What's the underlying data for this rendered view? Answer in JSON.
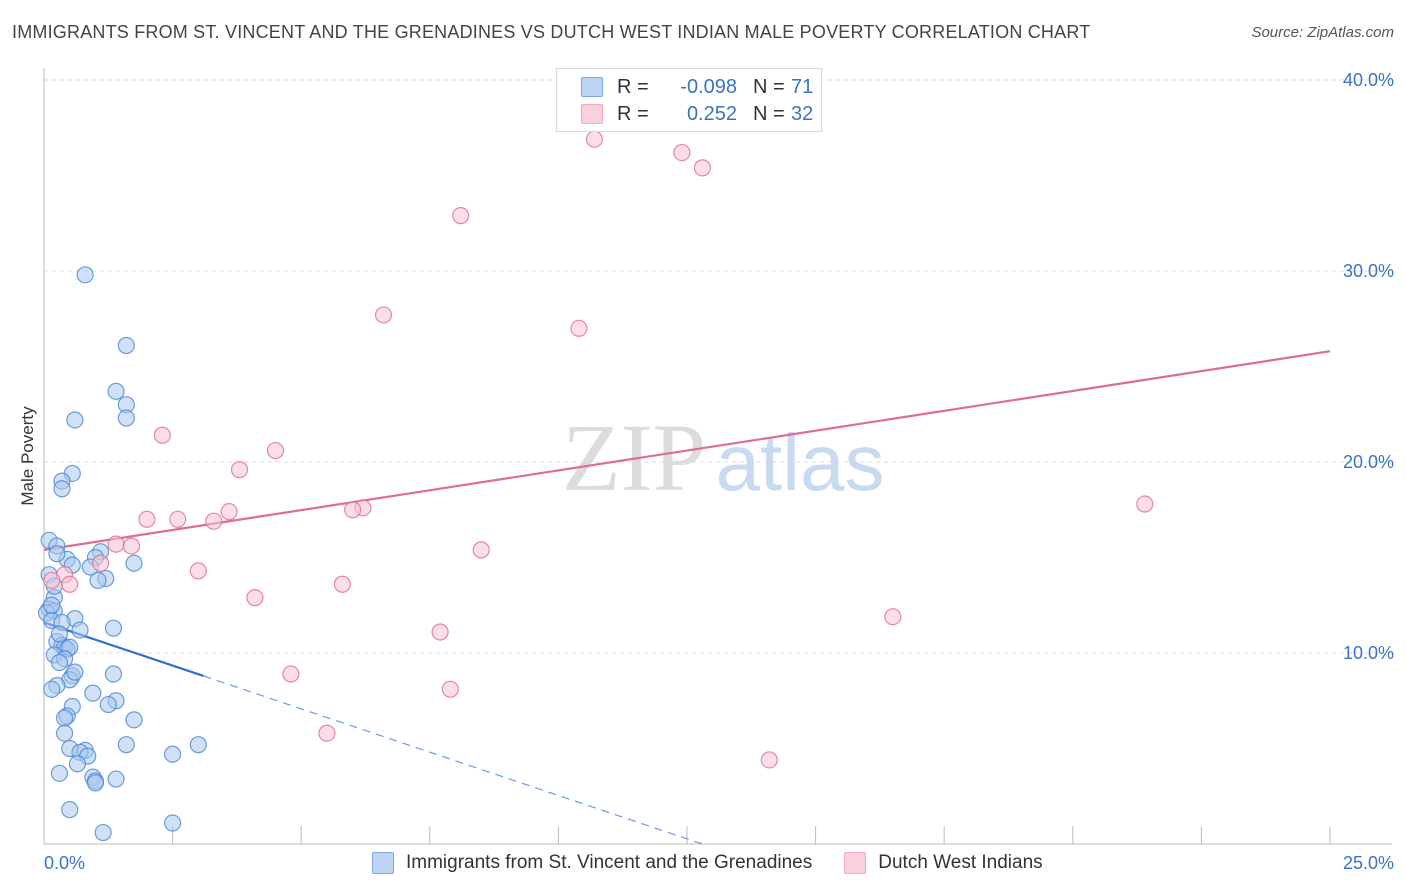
{
  "header": {
    "title": "IMMIGRANTS FROM ST. VINCENT AND THE GRENADINES VS DUTCH WEST INDIAN MALE POVERTY CORRELATION CHART",
    "source": "Source: ZipAtlas.com"
  },
  "watermark": {
    "zip": "ZIP",
    "atlas": "atlas"
  },
  "legend": {
    "r_label": "R =",
    "n_label": "N =",
    "rows": [
      {
        "r": "-0.098",
        "n": "71",
        "color": "#7aaae6"
      },
      {
        "r": "0.252",
        "n": "32",
        "color": "#f4a7bf"
      }
    ]
  },
  "chart_data": {
    "type": "scatter",
    "title": "IMMIGRANTS FROM ST. VINCENT AND THE GRENADINES VS DUTCH WEST INDIAN MALE POVERTY CORRELATION CHART",
    "xlabel": "",
    "ylabel": "Male Poverty",
    "xlim": [
      0,
      25
    ],
    "ylim": [
      0,
      40
    ],
    "x_tick_labels": [
      "0.0%",
      "25.0%"
    ],
    "y_tick_values": [
      10,
      20,
      30,
      40
    ],
    "y_tick_labels": [
      "10.0%",
      "20.0%",
      "30.0%",
      "40.0%"
    ],
    "grid": true,
    "legend_position": "top-center",
    "series": [
      {
        "name": "Immigrants from St. Vincent and the Grenadines",
        "color": "#4a86d6",
        "fill": "#a9c8ef",
        "trend": {
          "x": [
            0,
            3.1
          ],
          "y": [
            11.6,
            8.8
          ],
          "dashed_to": [
            12.8,
            0
          ]
        },
        "points": [
          [
            0.8,
            29.8
          ],
          [
            1.6,
            26.1
          ],
          [
            1.4,
            23.7
          ],
          [
            1.6,
            23.0
          ],
          [
            1.6,
            22.3
          ],
          [
            0.6,
            22.2
          ],
          [
            0.55,
            19.4
          ],
          [
            0.35,
            19.0
          ],
          [
            0.35,
            18.6
          ],
          [
            0.1,
            15.9
          ],
          [
            0.25,
            15.6
          ],
          [
            1.1,
            15.3
          ],
          [
            1.0,
            15.0
          ],
          [
            0.45,
            14.9
          ],
          [
            1.75,
            14.7
          ],
          [
            0.55,
            14.6
          ],
          [
            0.1,
            14.1
          ],
          [
            1.2,
            13.9
          ],
          [
            1.05,
            13.8
          ],
          [
            0.2,
            12.9
          ],
          [
            0.1,
            12.3
          ],
          [
            0.2,
            12.2
          ],
          [
            0.05,
            12.1
          ],
          [
            0.15,
            11.7
          ],
          [
            0.6,
            11.8
          ],
          [
            0.35,
            11.6
          ],
          [
            0.7,
            11.2
          ],
          [
            1.35,
            11.3
          ],
          [
            0.25,
            10.6
          ],
          [
            0.35,
            10.4
          ],
          [
            0.4,
            10.3
          ],
          [
            0.45,
            10.2
          ],
          [
            0.5,
            10.3
          ],
          [
            0.2,
            9.9
          ],
          [
            0.4,
            9.7
          ],
          [
            0.3,
            9.5
          ],
          [
            1.35,
            8.9
          ],
          [
            0.55,
            8.8
          ],
          [
            0.5,
            8.6
          ],
          [
            0.25,
            8.3
          ],
          [
            0.15,
            8.1
          ],
          [
            0.95,
            7.9
          ],
          [
            1.4,
            7.5
          ],
          [
            1.25,
            7.3
          ],
          [
            0.55,
            7.2
          ],
          [
            0.45,
            6.7
          ],
          [
            0.4,
            6.6
          ],
          [
            1.75,
            6.5
          ],
          [
            0.4,
            5.8
          ],
          [
            1.6,
            5.2
          ],
          [
            3.0,
            5.2
          ],
          [
            0.5,
            5.0
          ],
          [
            0.8,
            4.9
          ],
          [
            0.7,
            4.8
          ],
          [
            0.85,
            4.6
          ],
          [
            2.5,
            4.7
          ],
          [
            0.65,
            4.2
          ],
          [
            0.3,
            3.7
          ],
          [
            0.95,
            3.5
          ],
          [
            1.0,
            3.3
          ],
          [
            1.4,
            3.4
          ],
          [
            1.0,
            3.2
          ],
          [
            0.5,
            1.8
          ],
          [
            2.5,
            1.1
          ],
          [
            1.15,
            0.6
          ],
          [
            0.2,
            13.5
          ],
          [
            0.15,
            12.5
          ],
          [
            0.3,
            11.0
          ],
          [
            0.6,
            9.0
          ],
          [
            0.9,
            14.5
          ],
          [
            0.25,
            15.2
          ]
        ]
      },
      {
        "name": "Dutch West Indians",
        "color": "#e06b96",
        "fill": "#f7c2d3",
        "trend": {
          "x": [
            0,
            25
          ],
          "y": [
            15.4,
            25.8
          ]
        },
        "points": [
          [
            10.7,
            36.9
          ],
          [
            12.4,
            36.2
          ],
          [
            12.8,
            35.4
          ],
          [
            8.1,
            32.9
          ],
          [
            6.6,
            27.7
          ],
          [
            10.4,
            27.0
          ],
          [
            2.3,
            21.4
          ],
          [
            4.5,
            20.6
          ],
          [
            3.8,
            19.6
          ],
          [
            21.4,
            17.8
          ],
          [
            6.2,
            17.6
          ],
          [
            6.0,
            17.5
          ],
          [
            3.6,
            17.4
          ],
          [
            2.0,
            17.0
          ],
          [
            2.6,
            17.0
          ],
          [
            3.3,
            16.9
          ],
          [
            1.4,
            15.7
          ],
          [
            1.7,
            15.6
          ],
          [
            8.5,
            15.4
          ],
          [
            1.1,
            14.7
          ],
          [
            3.0,
            14.3
          ],
          [
            0.4,
            14.1
          ],
          [
            5.8,
            13.6
          ],
          [
            0.5,
            13.6
          ],
          [
            4.1,
            12.9
          ],
          [
            16.5,
            11.9
          ],
          [
            7.7,
            11.1
          ],
          [
            4.8,
            8.9
          ],
          [
            7.9,
            8.1
          ],
          [
            5.5,
            5.8
          ],
          [
            14.1,
            4.4
          ],
          [
            0.15,
            13.8
          ]
        ]
      }
    ]
  }
}
